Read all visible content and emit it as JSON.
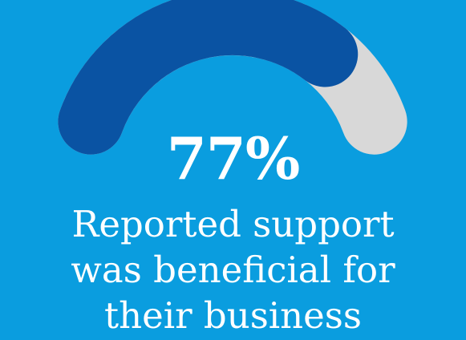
{
  "colors": {
    "background": "#0a9ddf",
    "filled_arc": "#0a53a3",
    "remaining_arc": "#d8d8d8",
    "text": "#ffffff"
  },
  "chart_data": {
    "type": "gauge",
    "value": 77,
    "max": 100,
    "value_label": "77%",
    "caption_lines": [
      "Reported support",
      "was beneficial for",
      "their business"
    ]
  }
}
